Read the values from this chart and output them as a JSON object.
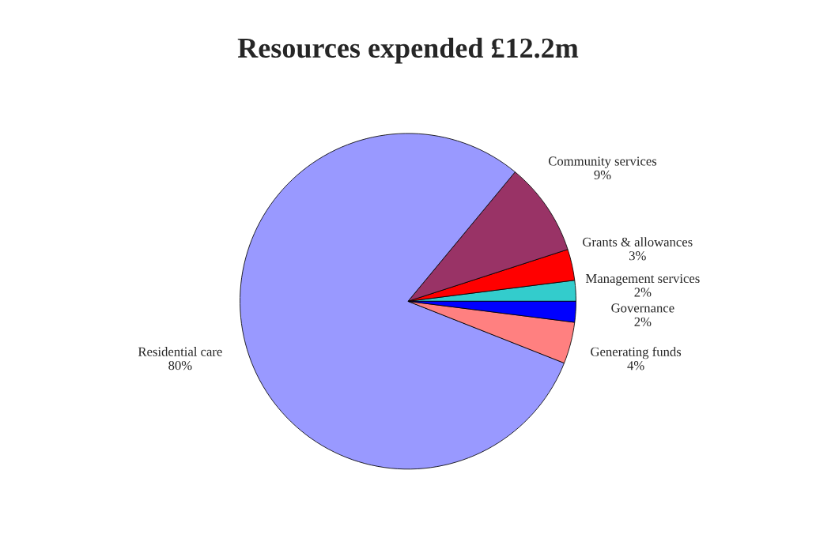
{
  "chart_data": {
    "type": "pie",
    "title": "Resources expended £12.2m",
    "categories": [
      "Management services",
      "Grants & allowances",
      "Community services",
      "Residential care",
      "Generating funds",
      "Governance"
    ],
    "values": [
      2,
      3,
      9,
      80,
      4,
      2
    ],
    "value_labels": [
      "2%",
      "3%",
      "9%",
      "80%",
      "4%",
      "2%"
    ],
    "colors": [
      "#33cccc",
      "#ff0000",
      "#993366",
      "#9999ff",
      "#ff8080",
      "#0000ff"
    ]
  }
}
